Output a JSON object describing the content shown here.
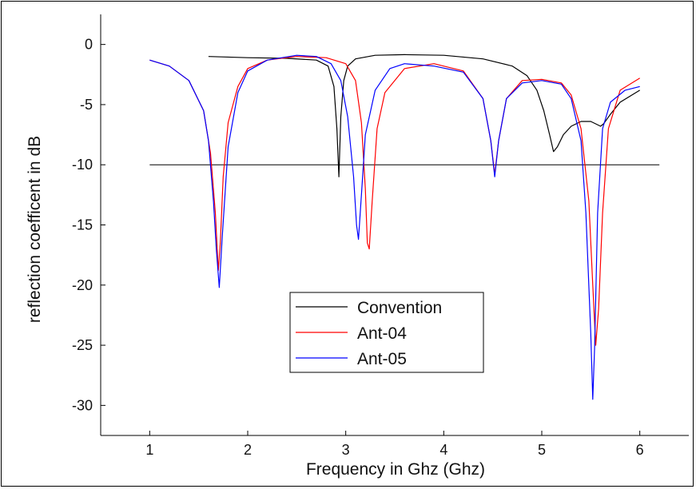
{
  "chart_data": {
    "type": "line",
    "title": "",
    "xlabel": "Frequency in Ghz (Ghz)",
    "ylabel": "reflection coefficent in dB",
    "xlim": [
      0.5,
      6.5
    ],
    "ylim": [
      -32.5,
      2.5
    ],
    "xticks": [
      "1",
      "2",
      "3",
      "4",
      "5",
      "6"
    ],
    "yticks": [
      "0",
      "-5",
      "-10",
      "-15",
      "-20",
      "-25",
      "-30"
    ],
    "grid": false,
    "legend_position": "lower-center",
    "reference_line": {
      "y": -10,
      "x_from": 1.0,
      "x_to": 6.2,
      "color": "#000000"
    },
    "series": [
      {
        "name": "Convention",
        "color": "#000000",
        "x": [
          1.6,
          2.0,
          2.4,
          2.7,
          2.82,
          2.88,
          2.91,
          2.93,
          2.95,
          2.98,
          3.02,
          3.1,
          3.3,
          3.6,
          4.0,
          4.4,
          4.7,
          4.85,
          4.95,
          5.02,
          5.08,
          5.12,
          5.16,
          5.22,
          5.3,
          5.4,
          5.5,
          5.55,
          5.6,
          5.63,
          5.7,
          5.8,
          6.0
        ],
        "y": [
          -1.0,
          -1.1,
          -1.15,
          -1.3,
          -1.8,
          -3.5,
          -7.0,
          -11.0,
          -6.0,
          -3.0,
          -1.8,
          -1.2,
          -0.9,
          -0.85,
          -0.9,
          -1.2,
          -1.8,
          -2.6,
          -3.8,
          -5.5,
          -7.5,
          -8.9,
          -8.5,
          -7.5,
          -6.8,
          -6.4,
          -6.4,
          -6.6,
          -6.8,
          -6.6,
          -5.8,
          -4.8,
          -3.8
        ]
      },
      {
        "name": "Ant-04",
        "color": "#ff0000",
        "x": [
          1.0,
          1.2,
          1.4,
          1.55,
          1.62,
          1.67,
          1.7,
          1.72,
          1.75,
          1.8,
          1.9,
          2.0,
          2.2,
          2.5,
          2.8,
          3.0,
          3.1,
          3.16,
          3.2,
          3.22,
          3.24,
          3.27,
          3.32,
          3.4,
          3.6,
          3.9,
          4.2,
          4.4,
          4.48,
          4.52,
          4.56,
          4.64,
          4.8,
          5.0,
          5.2,
          5.3,
          5.4,
          5.48,
          5.52,
          5.55,
          5.58,
          5.62,
          5.68,
          5.8,
          6.0
        ],
        "y": [
          -1.3,
          -1.8,
          -3.0,
          -5.5,
          -9.0,
          -14.0,
          -18.8,
          -16.5,
          -11.0,
          -6.5,
          -3.5,
          -2.0,
          -1.3,
          -1.0,
          -1.1,
          -1.6,
          -3.0,
          -6.5,
          -12.0,
          -16.5,
          -17.0,
          -13.0,
          -7.0,
          -4.0,
          -2.0,
          -1.6,
          -2.2,
          -4.5,
          -8.0,
          -10.8,
          -8.0,
          -4.5,
          -3.0,
          -2.9,
          -3.2,
          -4.2,
          -7.0,
          -13.0,
          -20.0,
          -25.0,
          -22.0,
          -14.0,
          -7.0,
          -3.8,
          -2.8
        ]
      },
      {
        "name": "Ant-05",
        "color": "#0000ff",
        "x": [
          1.0,
          1.2,
          1.4,
          1.55,
          1.6,
          1.65,
          1.68,
          1.71,
          1.74,
          1.8,
          1.9,
          2.0,
          2.2,
          2.5,
          2.7,
          2.85,
          2.95,
          3.02,
          3.08,
          3.11,
          3.13,
          3.16,
          3.2,
          3.3,
          3.45,
          3.6,
          3.9,
          4.2,
          4.4,
          4.48,
          4.52,
          4.56,
          4.64,
          4.8,
          5.0,
          5.2,
          5.3,
          5.4,
          5.45,
          5.5,
          5.52,
          5.54,
          5.57,
          5.62,
          5.7,
          5.85,
          6.0
        ],
        "y": [
          -1.3,
          -1.8,
          -3.0,
          -5.5,
          -8.0,
          -13.0,
          -17.0,
          -20.2,
          -16.0,
          -8.5,
          -4.0,
          -2.2,
          -1.3,
          -0.9,
          -1.0,
          -1.6,
          -3.0,
          -6.0,
          -11.0,
          -15.0,
          -16.2,
          -12.5,
          -7.5,
          -3.8,
          -2.0,
          -1.6,
          -1.8,
          -2.3,
          -4.5,
          -8.0,
          -11.0,
          -8.0,
          -4.5,
          -3.2,
          -3.0,
          -3.3,
          -4.5,
          -8.0,
          -14.0,
          -24.0,
          -29.5,
          -25.0,
          -14.0,
          -7.0,
          -4.8,
          -3.8,
          -3.5
        ]
      }
    ]
  }
}
